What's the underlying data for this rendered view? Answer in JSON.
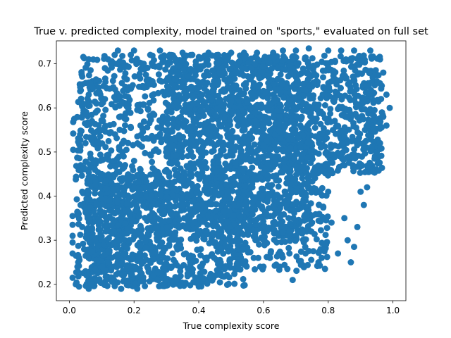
{
  "chart_data": {
    "type": "scatter",
    "title": "True v. predicted complexity, model trained on \"sports,\" evaluated on full set",
    "xlabel": "True complexity score",
    "ylabel": "Predicted complexity score",
    "xlim": [
      -0.04,
      1.04
    ],
    "ylim": [
      0.163,
      0.752
    ],
    "xticks": [
      0.0,
      0.2,
      0.4,
      0.6,
      0.8,
      1.0
    ],
    "xtick_labels": [
      "0.0",
      "0.2",
      "0.4",
      "0.6",
      "0.8",
      "1.0"
    ],
    "yticks": [
      0.2,
      0.3,
      0.4,
      0.5,
      0.6,
      0.7
    ],
    "ytick_labels": [
      "0.2",
      "0.3",
      "0.4",
      "0.5",
      "0.6",
      "0.7"
    ],
    "grid": false,
    "legend": "none",
    "marker_color": "#1f77b4",
    "points": [
      [
        0.01,
        0.215
      ],
      [
        0.01,
        0.27
      ],
      [
        0.01,
        0.295
      ],
      [
        0.01,
        0.31
      ],
      [
        0.01,
        0.335
      ],
      [
        0.01,
        0.355
      ],
      [
        0.012,
        0.505
      ],
      [
        0.012,
        0.542
      ],
      [
        0.012,
        0.568
      ],
      [
        0.015,
        0.575
      ],
      [
        0.02,
        0.2
      ],
      [
        0.025,
        0.24
      ],
      [
        0.03,
        0.195
      ],
      [
        0.03,
        0.26
      ],
      [
        0.035,
        0.38
      ],
      [
        0.04,
        0.33
      ],
      [
        0.04,
        0.41
      ],
      [
        0.045,
        0.465
      ],
      [
        0.05,
        0.52
      ],
      [
        0.05,
        0.59
      ],
      [
        0.055,
        0.61
      ],
      [
        0.06,
        0.71
      ],
      [
        0.06,
        0.63
      ],
      [
        0.065,
        0.655
      ],
      [
        0.07,
        0.57
      ],
      [
        0.06,
        0.19
      ],
      [
        0.07,
        0.2
      ],
      [
        0.08,
        0.235
      ],
      [
        0.08,
        0.3
      ],
      [
        0.09,
        0.34
      ],
      [
        0.1,
        0.36
      ],
      [
        0.1,
        0.45
      ],
      [
        0.1,
        0.55
      ],
      [
        0.11,
        0.62
      ],
      [
        0.11,
        0.69
      ],
      [
        0.12,
        0.71
      ],
      [
        0.12,
        0.25
      ],
      [
        0.13,
        0.21
      ],
      [
        0.13,
        0.43
      ],
      [
        0.14,
        0.72
      ],
      [
        0.15,
        0.73
      ],
      [
        0.15,
        0.3
      ],
      [
        0.16,
        0.19
      ],
      [
        0.17,
        0.42
      ],
      [
        0.18,
        0.64
      ],
      [
        0.19,
        0.72
      ],
      [
        0.2,
        0.73
      ],
      [
        0.21,
        0.19
      ],
      [
        0.22,
        0.56
      ],
      [
        0.23,
        0.7
      ],
      [
        0.25,
        0.72
      ],
      [
        0.26,
        0.22
      ],
      [
        0.28,
        0.73
      ],
      [
        0.29,
        0.2
      ],
      [
        0.3,
        0.5
      ],
      [
        0.31,
        0.72
      ],
      [
        0.33,
        0.21
      ],
      [
        0.35,
        0.725
      ],
      [
        0.36,
        0.27
      ],
      [
        0.38,
        0.72
      ],
      [
        0.4,
        0.195
      ],
      [
        0.4,
        0.205
      ],
      [
        0.42,
        0.26
      ],
      [
        0.43,
        0.725
      ],
      [
        0.45,
        0.22
      ],
      [
        0.46,
        0.72
      ],
      [
        0.48,
        0.235
      ],
      [
        0.5,
        0.725
      ],
      [
        0.52,
        0.25
      ],
      [
        0.54,
        0.725
      ],
      [
        0.57,
        0.26
      ],
      [
        0.58,
        0.725
      ],
      [
        0.6,
        0.24
      ],
      [
        0.62,
        0.26
      ],
      [
        0.63,
        0.725
      ],
      [
        0.65,
        0.24
      ],
      [
        0.66,
        0.73
      ],
      [
        0.68,
        0.27
      ],
      [
        0.69,
        0.21
      ],
      [
        0.7,
        0.73
      ],
      [
        0.72,
        0.32
      ],
      [
        0.73,
        0.27
      ],
      [
        0.74,
        0.735
      ],
      [
        0.75,
        0.34
      ],
      [
        0.77,
        0.25
      ],
      [
        0.78,
        0.26
      ],
      [
        0.79,
        0.235
      ],
      [
        0.8,
        0.73
      ],
      [
        0.81,
        0.34
      ],
      [
        0.83,
        0.27
      ],
      [
        0.84,
        0.73
      ],
      [
        0.85,
        0.35
      ],
      [
        0.86,
        0.3
      ],
      [
        0.87,
        0.25
      ],
      [
        0.88,
        0.285
      ],
      [
        0.88,
        0.73
      ],
      [
        0.89,
        0.33
      ],
      [
        0.9,
        0.41
      ],
      [
        0.91,
        0.38
      ],
      [
        0.92,
        0.42
      ],
      [
        0.93,
        0.73
      ],
      [
        0.94,
        0.455
      ],
      [
        0.95,
        0.5
      ],
      [
        0.96,
        0.52
      ],
      [
        0.97,
        0.58
      ],
      [
        0.98,
        0.63
      ],
      [
        0.98,
        0.56
      ],
      [
        0.99,
        0.6
      ],
      [
        0.97,
        0.68
      ],
      [
        0.96,
        0.71
      ]
    ],
    "dense_regions": [
      {
        "x": [
          0.02,
          0.55
        ],
        "y": [
          0.195,
          0.72
        ],
        "count": 1300
      },
      {
        "x": [
          0.05,
          0.3
        ],
        "y": [
          0.195,
          0.45
        ],
        "count": 500
      },
      {
        "x": [
          0.3,
          0.75
        ],
        "y": [
          0.3,
          0.72
        ],
        "count": 1000
      },
      {
        "x": [
          0.55,
          0.97
        ],
        "y": [
          0.45,
          0.72
        ],
        "count": 800
      },
      {
        "x": [
          0.45,
          0.8
        ],
        "y": [
          0.23,
          0.45
        ],
        "count": 300
      }
    ]
  }
}
